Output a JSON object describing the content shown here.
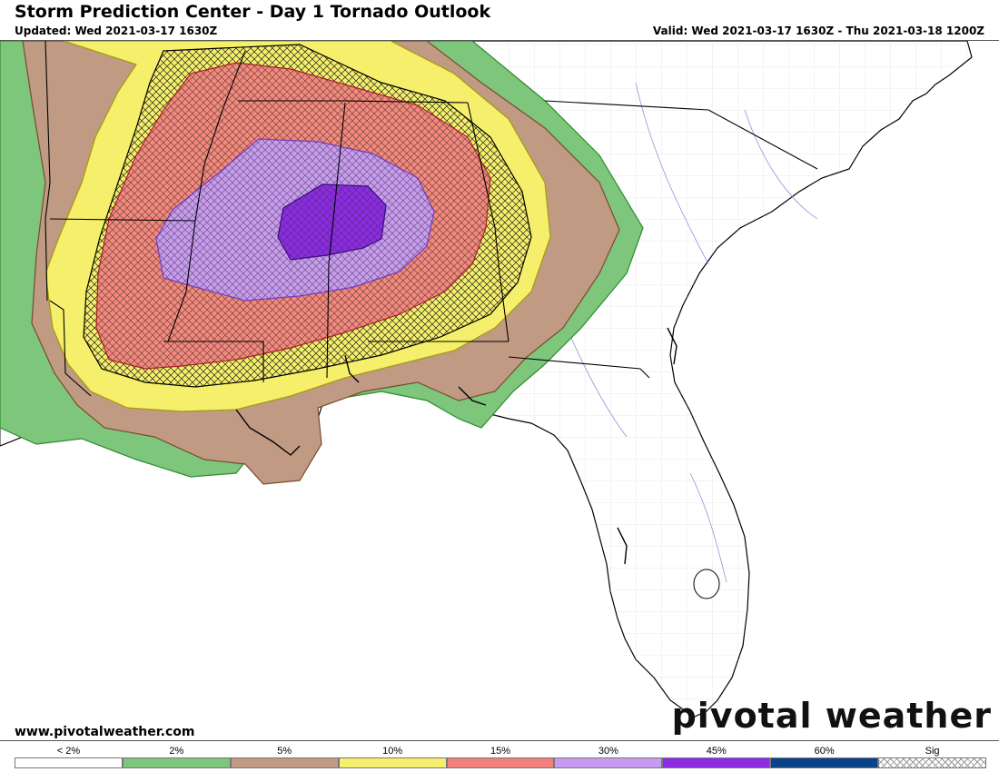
{
  "header": {
    "title": "Storm Prediction Center - Day 1 Tornado Outlook",
    "updated": "Updated: Wed 2021-03-17 1630Z",
    "valid": "Valid: Wed 2021-03-17 1630Z - Thu 2021-03-18 1200Z"
  },
  "footer": {
    "site_url": "www.pivotalweather.com",
    "brand": "pivotal weather"
  },
  "risk_colors": {
    "2%": "#7dc67c",
    "5%": "#c09a83",
    "10%": "#f5ef6b",
    "15%": "#f37e7e",
    "30%": "#c89bf0",
    "45%": "#8c2ce2",
    "60%": "#0b4388"
  },
  "legend": [
    {
      "label": "< 2%",
      "color": "#ffffff"
    },
    {
      "label": "2%",
      "color": "#7dc67c"
    },
    {
      "label": "5%",
      "color": "#c09a83"
    },
    {
      "label": "10%",
      "color": "#f5ef6b"
    },
    {
      "label": "15%",
      "color": "#f37e7e"
    },
    {
      "label": "30%",
      "color": "#c89bf0"
    },
    {
      "label": "45%",
      "color": "#8c2ce2"
    },
    {
      "label": "60%",
      "color": "#0b4388"
    },
    {
      "label": "Sig",
      "color": "hatch"
    }
  ]
}
